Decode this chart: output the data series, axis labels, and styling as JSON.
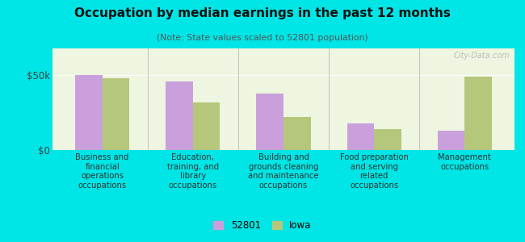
{
  "title": "Occupation by median earnings in the past 12 months",
  "subtitle": "(Note: State values scaled to 52801 population)",
  "categories": [
    "Business and\nfinancial\noperations\noccupations",
    "Education,\ntraining, and\nlibrary\noccupations",
    "Building and\ngrounds cleaning\nand maintenance\noccupations",
    "Food preparation\nand serving\nrelated\noccupations",
    "Management\noccupations"
  ],
  "values_52801": [
    50000,
    46000,
    38000,
    18000,
    13000
  ],
  "values_iowa": [
    48000,
    32000,
    22000,
    14000,
    49000
  ],
  "color_52801": "#c9a0dc",
  "color_iowa": "#b5c77a",
  "ylim": [
    0,
    68000
  ],
  "yticks": [
    0,
    50000
  ],
  "ytick_labels": [
    "$0",
    "$50k"
  ],
  "bar_width": 0.3,
  "background_outer": "#00e5e5",
  "background_inner": "#eef5e0",
  "legend_label_52801": "52801",
  "legend_label_iowa": "Iowa",
  "watermark": "City-Data.com"
}
